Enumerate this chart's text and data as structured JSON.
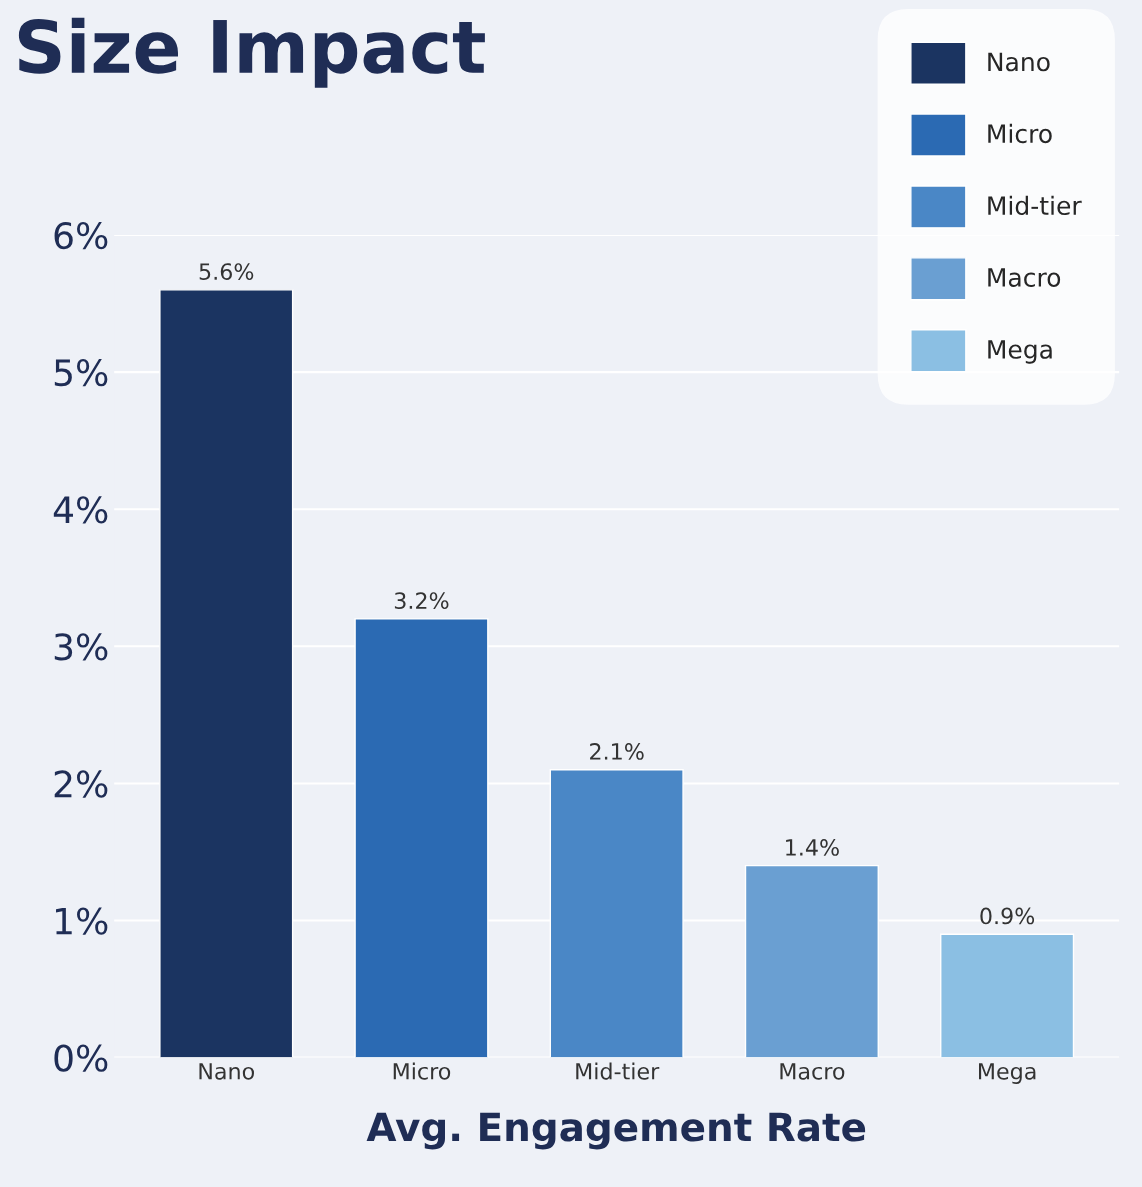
{
  "chart_data": {
    "type": "bar",
    "title": "Size Impact",
    "xlabel": "Avg. Engagement Rate",
    "categories": [
      "Nano",
      "Micro",
      "Mid-tier",
      "Macro",
      "Mega"
    ],
    "series": [
      {
        "name": "Nano",
        "color": "#1b3461",
        "values": [
          5.6,
          null,
          null,
          null,
          null
        ],
        "value_labels": [
          "5.6%",
          null,
          null,
          null,
          null
        ]
      },
      {
        "name": "Micro",
        "color": "#2b6ab3",
        "values": [
          null,
          3.2,
          null,
          null,
          null
        ],
        "value_labels": [
          null,
          "3.2%",
          null,
          null,
          null
        ]
      },
      {
        "name": "Mid-tier",
        "color": "#4a87c6",
        "values": [
          null,
          null,
          2.1,
          null,
          null
        ],
        "value_labels": [
          null,
          null,
          "2.1%",
          null,
          null
        ]
      },
      {
        "name": "Macro",
        "color": "#6a9fd2",
        "values": [
          null,
          null,
          null,
          1.4,
          null
        ],
        "value_labels": [
          null,
          null,
          null,
          "1.4%",
          null
        ]
      },
      {
        "name": "Mega",
        "color": "#8bbfe3",
        "values": [
          null,
          null,
          null,
          null,
          0.9
        ],
        "value_labels": [
          null,
          null,
          null,
          null,
          "0.9%"
        ]
      }
    ],
    "ylim": [
      0,
      6
    ],
    "yticks": [
      {
        "value": 0,
        "label": "0%"
      },
      {
        "value": 1,
        "label": "1%"
      },
      {
        "value": 2,
        "label": "2%"
      },
      {
        "value": 3,
        "label": "3%"
      },
      {
        "value": 4,
        "label": "4%"
      },
      {
        "value": 5,
        "label": "5%"
      },
      {
        "value": 6,
        "label": "6%"
      }
    ],
    "grid": "y",
    "legend": "top right"
  }
}
